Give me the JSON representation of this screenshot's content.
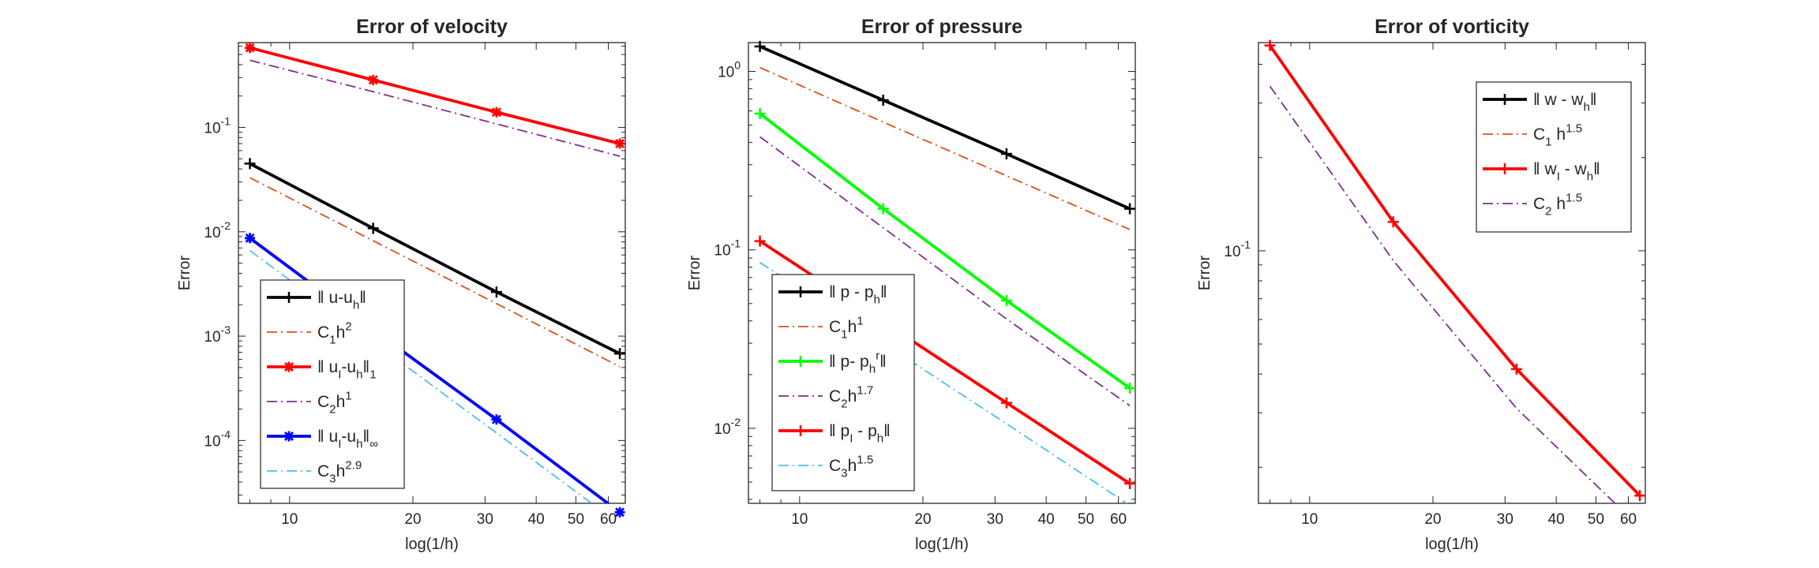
{
  "chart_data": [
    {
      "type": "line",
      "title": "Error of velocity",
      "xlabel": "log(1/h)",
      "ylabel": "Error",
      "x_scale": "log",
      "y_scale": "log",
      "xlim": [
        7.5,
        66
      ],
      "ylim": [
        2.5e-05,
        0.65
      ],
      "xticks": [
        10,
        20,
        30,
        40,
        50,
        60
      ],
      "xtick_labels": [
        "10",
        "20",
        "30",
        "40",
        "50",
        "60"
      ],
      "yticks": [
        0.0001,
        0.001,
        0.01,
        0.1
      ],
      "ytick_labels": [
        [
          "10",
          "-4"
        ],
        [
          "10",
          "-3"
        ],
        [
          "10",
          "-2"
        ],
        [
          "10",
          "-1"
        ]
      ],
      "grid": false,
      "legend_position": "bottom-left",
      "series": [
        {
          "name": [
            [
              "‖ u-u",
              "normal"
            ],
            [
              "h",
              "sub"
            ],
            [
              "‖",
              "normal"
            ]
          ],
          "x": [
            8,
            16,
            32,
            64
          ],
          "y": [
            0.045,
            0.0108,
            0.00265,
            0.00068
          ],
          "color": "#000000",
          "style": "solid",
          "marker": "plus"
        },
        {
          "name": [
            [
              "C",
              "normal"
            ],
            [
              "1",
              "sub"
            ],
            [
              "h",
              "normal"
            ],
            [
              "2",
              "sup"
            ]
          ],
          "x": [
            8,
            16,
            32,
            64
          ],
          "y": [
            0.033,
            0.0082,
            0.00205,
            0.00051
          ],
          "color": "#d95319",
          "style": "dashdot",
          "marker": "none"
        },
        {
          "name": [
            [
              "‖ u",
              "normal"
            ],
            [
              "I",
              "sub"
            ],
            [
              "-u",
              "normal"
            ],
            [
              "h",
              "sub"
            ],
            [
              "‖",
              "normal"
            ],
            [
              "1",
              "sub"
            ]
          ],
          "x": [
            8,
            16,
            32,
            64
          ],
          "y": [
            0.58,
            0.285,
            0.14,
            0.07
          ],
          "color": "#ff0000",
          "style": "solid",
          "marker": "star"
        },
        {
          "name": [
            [
              "C",
              "normal"
            ],
            [
              "2",
              "sub"
            ],
            [
              "h",
              "normal"
            ],
            [
              "1",
              "sup"
            ]
          ],
          "x": [
            8,
            16,
            32,
            64
          ],
          "y": [
            0.44,
            0.22,
            0.108,
            0.053
          ],
          "color": "#7e2f8e",
          "style": "dashdot",
          "marker": "none"
        },
        {
          "name": [
            [
              "‖ u",
              "normal"
            ],
            [
              "I",
              "sub"
            ],
            [
              "-u",
              "normal"
            ],
            [
              "h",
              "sub"
            ],
            [
              "‖",
              "normal"
            ],
            [
              "∞",
              "sub"
            ]
          ],
          "x": [
            8,
            16,
            32,
            64
          ],
          "y": [
            0.0087,
            0.00115,
            0.000159,
            2.05e-05
          ],
          "color": "#0000ff",
          "style": "solid",
          "marker": "star"
        },
        {
          "name": [
            [
              "C",
              "normal"
            ],
            [
              "3",
              "sub"
            ],
            [
              "h",
              "normal"
            ],
            [
              "2.9",
              "sup"
            ]
          ],
          "x": [
            8,
            16,
            32,
            64
          ],
          "y": [
            0.0066,
            0.00088,
            0.000118,
            1.58e-05
          ],
          "color": "#4dbeee",
          "style": "dashdot",
          "marker": "none"
        }
      ]
    },
    {
      "type": "line",
      "title": "Error of pressure",
      "xlabel": "log(1/h)",
      "ylabel": "Error",
      "x_scale": "log",
      "y_scale": "log",
      "xlim": [
        7.5,
        66
      ],
      "ylim": [
        0.0038,
        1.45
      ],
      "xticks": [
        10,
        20,
        30,
        40,
        50,
        60
      ],
      "xtick_labels": [
        "10",
        "20",
        "30",
        "40",
        "50",
        "60"
      ],
      "yticks": [
        0.01,
        0.1,
        1
      ],
      "ytick_labels": [
        [
          "10",
          "-2"
        ],
        [
          "10",
          "-1"
        ],
        [
          "10",
          "0"
        ]
      ],
      "grid": false,
      "legend_position": "bottom-left",
      "series": [
        {
          "name": [
            [
              "‖ p - p",
              "normal"
            ],
            [
              "h",
              "sub"
            ],
            [
              "‖",
              "normal"
            ]
          ],
          "x": [
            8,
            16,
            32,
            64
          ],
          "y": [
            1.38,
            0.69,
            0.345,
            0.17
          ],
          "color": "#000000",
          "style": "solid",
          "marker": "plus"
        },
        {
          "name": [
            [
              "C",
              "normal"
            ],
            [
              "1",
              "sub"
            ],
            [
              "h",
              "normal"
            ],
            [
              "1",
              "sup"
            ]
          ],
          "x": [
            8,
            16,
            32,
            64
          ],
          "y": [
            1.05,
            0.52,
            0.26,
            0.13
          ],
          "color": "#d95319",
          "style": "dashdot",
          "marker": "none"
        },
        {
          "name": [
            [
              "‖ p- p",
              "normal"
            ],
            [
              "h",
              "sub"
            ],
            [
              "r",
              "sup"
            ],
            [
              "‖",
              "normal"
            ]
          ],
          "x": [
            8,
            16,
            32,
            64
          ],
          "y": [
            0.58,
            0.17,
            0.052,
            0.0168
          ],
          "color": "#00ff00",
          "style": "solid",
          "marker": "plus"
        },
        {
          "name": [
            [
              "C",
              "normal"
            ],
            [
              "2",
              "sub"
            ],
            [
              "h",
              "normal"
            ],
            [
              "1.7",
              "sup"
            ]
          ],
          "x": [
            8,
            16,
            32,
            64
          ],
          "y": [
            0.43,
            0.133,
            0.041,
            0.0134
          ],
          "color": "#7e2f8e",
          "style": "dashdot",
          "marker": "none"
        },
        {
          "name": [
            [
              "‖ p",
              "normal"
            ],
            [
              "I",
              "sub"
            ],
            [
              " - p",
              "normal"
            ],
            [
              "h",
              "sub"
            ],
            [
              "‖",
              "normal"
            ]
          ],
          "x": [
            8,
            16,
            32,
            64
          ],
          "y": [
            0.112,
            0.0395,
            0.0139,
            0.0049
          ],
          "color": "#ff0000",
          "style": "solid",
          "marker": "plus"
        },
        {
          "name": [
            [
              "C",
              "normal"
            ],
            [
              "3",
              "sub"
            ],
            [
              "h",
              "normal"
            ],
            [
              "1.5",
              "sup"
            ]
          ],
          "x": [
            8,
            16,
            32,
            64
          ],
          "y": [
            0.085,
            0.03,
            0.0106,
            0.0037
          ],
          "color": "#4dbeee",
          "style": "dashdot",
          "marker": "none"
        }
      ]
    },
    {
      "type": "line",
      "title": "Error of vorticity",
      "xlabel": "log(1/h)",
      "ylabel": "Error",
      "x_scale": "log",
      "y_scale": "log",
      "xlim": [
        7.5,
        66
      ],
      "ylim": [
        0.0153,
        0.47
      ],
      "xticks": [
        10,
        20,
        30,
        40,
        50,
        60
      ],
      "xtick_labels": [
        "10",
        "20",
        "30",
        "40",
        "50",
        "60"
      ],
      "yticks": [
        0.1
      ],
      "ytick_labels": [
        [
          "10",
          "-1"
        ]
      ],
      "grid": false,
      "legend_position": "top-right",
      "series": [
        {
          "name": [
            [
              "‖ w - w",
              "normal"
            ],
            [
              "h",
              "sub"
            ],
            [
              "‖",
              "normal"
            ]
          ],
          "x": [],
          "y": [],
          "color": "#000000",
          "style": "solid",
          "marker": "plus"
        },
        {
          "name": [
            [
              "C",
              "normal"
            ],
            [
              "1",
              "sub"
            ],
            [
              " h",
              "normal"
            ],
            [
              "1.5",
              "sup"
            ]
          ],
          "x": [],
          "y": [],
          "color": "#d95319",
          "style": "dashdot",
          "marker": "none"
        },
        {
          "name": [
            [
              "‖ w",
              "normal"
            ],
            [
              "I",
              "sub"
            ],
            [
              " - w",
              "normal"
            ],
            [
              "h",
              "sub"
            ],
            [
              "‖",
              "normal"
            ]
          ],
          "x": [
            8,
            16,
            32,
            64
          ],
          "y": [
            0.46,
            0.124,
            0.0415,
            0.0162
          ],
          "color": "#ff0000",
          "style": "solid",
          "marker": "plus"
        },
        {
          "name": [
            [
              "C",
              "normal"
            ],
            [
              "2",
              "sub"
            ],
            [
              " h",
              "normal"
            ],
            [
              "1.5",
              "sup"
            ]
          ],
          "x": [
            8,
            16,
            32,
            64
          ],
          "y": [
            0.34,
            0.093,
            0.031,
            0.0128
          ],
          "color": "#7e2f8e",
          "style": "dashdot",
          "marker": "none"
        }
      ]
    }
  ]
}
